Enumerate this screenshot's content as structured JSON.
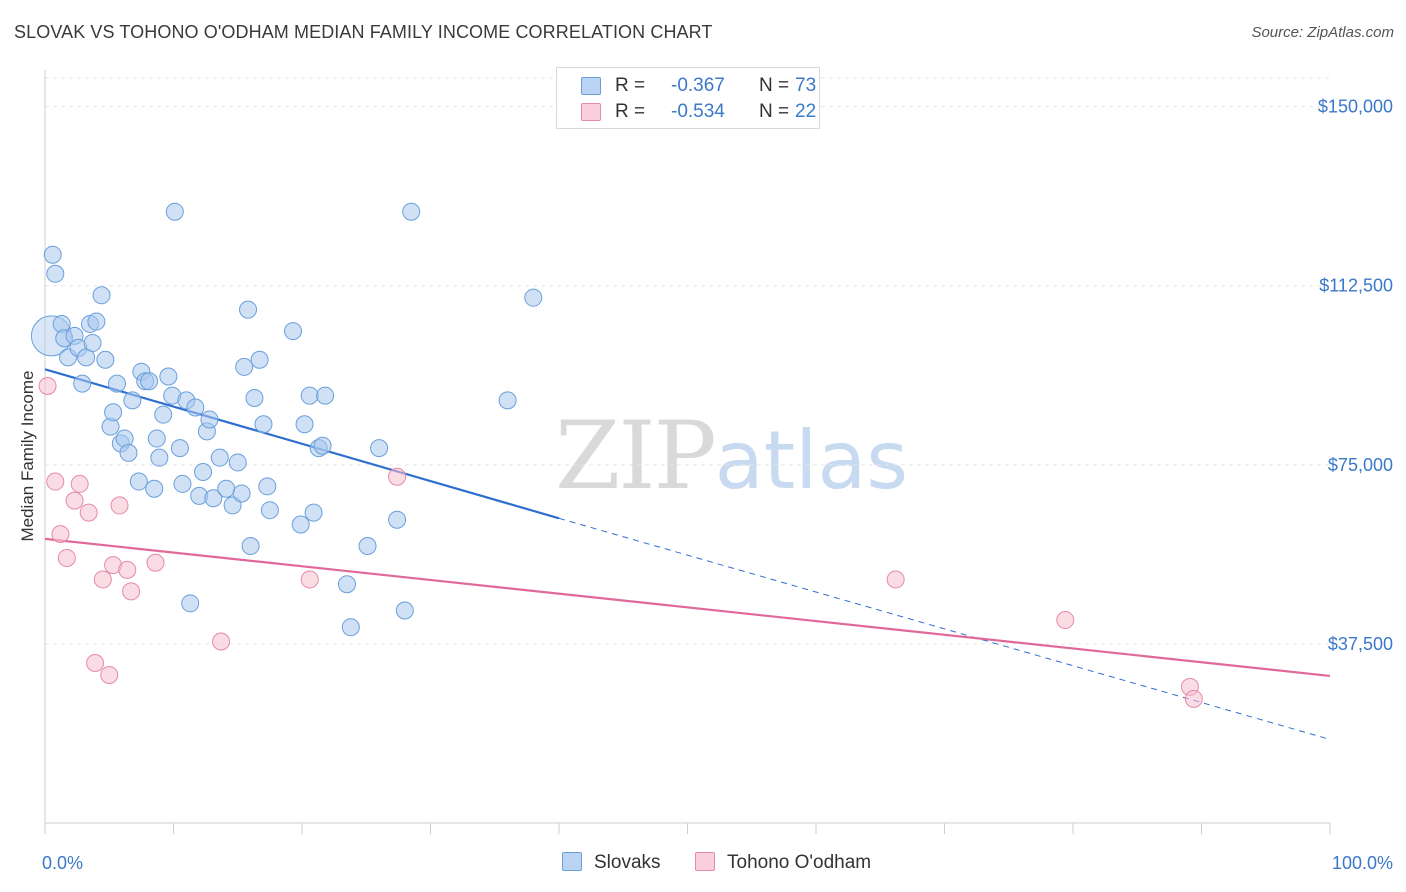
{
  "header": {
    "title": "SLOVAK VS TOHONO O'ODHAM MEDIAN FAMILY INCOME CORRELATION CHART",
    "source": "Source: ZipAtlas.com"
  },
  "watermark": {
    "zip": "ZIP",
    "atlas": "atlas"
  },
  "legend": {
    "r_label": "R =",
    "n_label": "N =",
    "slovaks": {
      "r": "-0.367",
      "n": "73"
    },
    "tohono": {
      "r": "-0.534",
      "n": "22"
    }
  },
  "bottom_legend": {
    "slovaks": "Slovaks",
    "tohono": "Tohono O'odham"
  },
  "colors": {
    "blue_fill": "#a9c8ef",
    "blue_stroke": "#6a9fdc",
    "blue_line": "#2f6fcf",
    "pink_fill": "#f6bfd0",
    "pink_stroke": "#e58aa8",
    "pink_line": "#e0699a",
    "grid": "#e6e6e6",
    "tick_text": "#3a78c9"
  },
  "chart_data": {
    "type": "scatter",
    "title": "SLOVAK VS TOHONO O'ODHAM MEDIAN FAMILY INCOME CORRELATION CHART",
    "xlabel": "",
    "ylabel": "Median Family Income",
    "xlim": [
      0,
      100
    ],
    "ylim": [
      0,
      156000
    ],
    "x_tick_labels": [
      "0.0%",
      "100.0%"
    ],
    "y_ticks": [
      37500,
      75000,
      112500,
      150000
    ],
    "y_tick_labels": [
      "$37,500",
      "$75,000",
      "$112,500",
      "$150,000"
    ],
    "grid": true,
    "series": [
      {
        "name": "Slovaks",
        "color": "#a9c8ef",
        "points": [
          [
            0.5,
            102000,
            3
          ],
          [
            0.6,
            119000,
            1
          ],
          [
            0.8,
            115000,
            1
          ],
          [
            1.3,
            104500,
            1
          ],
          [
            1.5,
            101500,
            1
          ],
          [
            1.8,
            97500,
            1
          ],
          [
            2.3,
            102000,
            1
          ],
          [
            2.6,
            99500,
            1
          ],
          [
            2.9,
            92000,
            1
          ],
          [
            3.2,
            97500,
            1
          ],
          [
            3.5,
            104500,
            1
          ],
          [
            3.7,
            100500,
            1
          ],
          [
            4.0,
            105000,
            1
          ],
          [
            4.4,
            110500,
            1
          ],
          [
            4.7,
            97000,
            1
          ],
          [
            5.1,
            83000,
            1
          ],
          [
            5.3,
            86000,
            1
          ],
          [
            5.6,
            92000,
            1
          ],
          [
            5.9,
            79500,
            1
          ],
          [
            6.2,
            80500,
            1
          ],
          [
            6.5,
            77500,
            1
          ],
          [
            6.8,
            88500,
            1
          ],
          [
            7.3,
            71500,
            1
          ],
          [
            7.5,
            94500,
            1
          ],
          [
            7.8,
            92500,
            1
          ],
          [
            8.1,
            92500,
            1
          ],
          [
            8.5,
            70000,
            1
          ],
          [
            8.7,
            80500,
            1
          ],
          [
            8.9,
            76500,
            1
          ],
          [
            9.2,
            85500,
            1
          ],
          [
            9.6,
            93500,
            1
          ],
          [
            9.9,
            89500,
            1
          ],
          [
            10.1,
            128000,
            1
          ],
          [
            10.5,
            78500,
            1
          ],
          [
            10.7,
            71000,
            1
          ],
          [
            11.0,
            88500,
            1
          ],
          [
            11.3,
            46000,
            1
          ],
          [
            11.7,
            87000,
            1
          ],
          [
            12.0,
            68500,
            1
          ],
          [
            12.3,
            73500,
            1
          ],
          [
            12.6,
            82000,
            1
          ],
          [
            12.8,
            84500,
            1
          ],
          [
            13.1,
            68000,
            1
          ],
          [
            13.6,
            76500,
            1
          ],
          [
            14.1,
            70000,
            1
          ],
          [
            14.6,
            66500,
            1
          ],
          [
            15.0,
            75500,
            1
          ],
          [
            15.3,
            69000,
            1
          ],
          [
            15.5,
            95500,
            1
          ],
          [
            15.8,
            107500,
            1
          ],
          [
            16.0,
            58000,
            1
          ],
          [
            16.3,
            89000,
            1
          ],
          [
            16.7,
            97000,
            1
          ],
          [
            17.0,
            83500,
            1
          ],
          [
            17.3,
            70500,
            1
          ],
          [
            19.3,
            103000,
            1
          ],
          [
            19.9,
            62500,
            1
          ],
          [
            20.2,
            83500,
            1
          ],
          [
            20.6,
            89500,
            1
          ],
          [
            20.9,
            65000,
            1
          ],
          [
            21.3,
            78500,
            1
          ],
          [
            21.6,
            79000,
            1
          ],
          [
            21.8,
            89500,
            1
          ],
          [
            23.5,
            50000,
            1
          ],
          [
            23.8,
            41000,
            1
          ],
          [
            25.1,
            58000,
            1
          ],
          [
            26.0,
            78500,
            1
          ],
          [
            27.4,
            63500,
            1
          ],
          [
            28.0,
            44500,
            1
          ],
          [
            28.5,
            128000,
            1
          ],
          [
            36.0,
            88500,
            1
          ],
          [
            38.0,
            110000,
            1
          ],
          [
            17.5,
            65500,
            1
          ]
        ]
      },
      {
        "name": "Tohono O'odham",
        "color": "#f6bfd0",
        "points": [
          [
            0.2,
            91500,
            1
          ],
          [
            0.8,
            71500,
            1
          ],
          [
            1.2,
            60500,
            1
          ],
          [
            1.7,
            55500,
            1
          ],
          [
            2.3,
            67500,
            1
          ],
          [
            2.7,
            71000,
            1
          ],
          [
            3.4,
            65000,
            1
          ],
          [
            3.9,
            33500,
            1
          ],
          [
            4.5,
            51000,
            1
          ],
          [
            5.0,
            31000,
            1
          ],
          [
            5.3,
            54000,
            1
          ],
          [
            5.8,
            66500,
            1
          ],
          [
            6.4,
            53000,
            1
          ],
          [
            6.7,
            48500,
            1
          ],
          [
            8.6,
            54500,
            1
          ],
          [
            13.7,
            38000,
            1
          ],
          [
            20.6,
            51000,
            1
          ],
          [
            27.4,
            72500,
            1
          ],
          [
            66.2,
            51000,
            1
          ],
          [
            79.4,
            42500,
            1
          ],
          [
            89.1,
            28500,
            1
          ],
          [
            89.4,
            26000,
            1
          ]
        ]
      }
    ],
    "trend_lines": [
      {
        "name": "Slovaks",
        "solid": [
          [
            0,
            95000
          ],
          [
            40,
            63800
          ]
        ],
        "dashed": [
          [
            40,
            63800
          ],
          [
            100,
            17500
          ]
        ]
      },
      {
        "name": "Tohono O'odham",
        "solid": [
          [
            0,
            59500
          ],
          [
            100,
            30800
          ]
        ]
      }
    ]
  }
}
